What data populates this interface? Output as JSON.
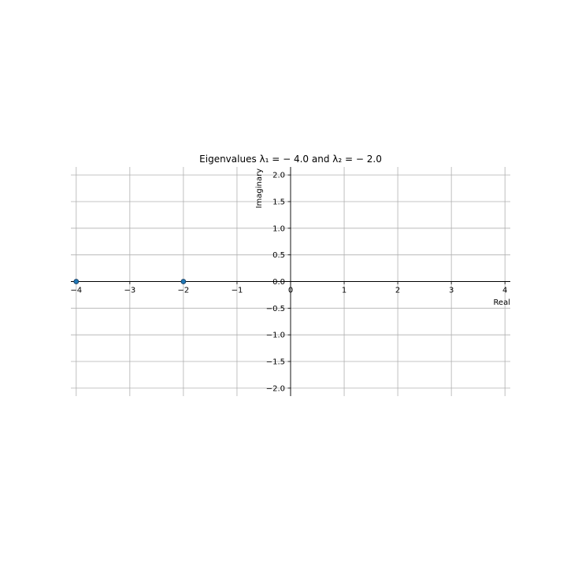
{
  "chart_data": {
    "type": "scatter",
    "title": "Eigenvalues λ₁ = − 4.0 and λ₂ = − 2.0",
    "xlabel": "Real",
    "ylabel": "Imaginary",
    "xlim": [
      -4.1,
      4.1
    ],
    "ylim": [
      -2.15,
      2.15
    ],
    "xticks": [
      -4,
      -3,
      -2,
      -1,
      0,
      1,
      2,
      3,
      4
    ],
    "xtick_labels": [
      "−4",
      "−3",
      "−2",
      "−1",
      "0",
      "1",
      "2",
      "3",
      "4"
    ],
    "yticks": [
      -2.0,
      -1.5,
      -1.0,
      -0.5,
      0.0,
      0.5,
      1.0,
      1.5,
      2.0
    ],
    "ytick_labels": [
      "−2.0",
      "−1.5",
      "−1.0",
      "−0.5",
      "0.0",
      "0.5",
      "1.0",
      "1.5",
      "2.0"
    ],
    "grid": true,
    "spines": "centered at origin",
    "series": [
      {
        "points": [
          {
            "x": -4.0,
            "y": 0.0
          },
          {
            "x": -2.0,
            "y": 0.0
          }
        ],
        "color": "#1f77b4"
      }
    ]
  }
}
